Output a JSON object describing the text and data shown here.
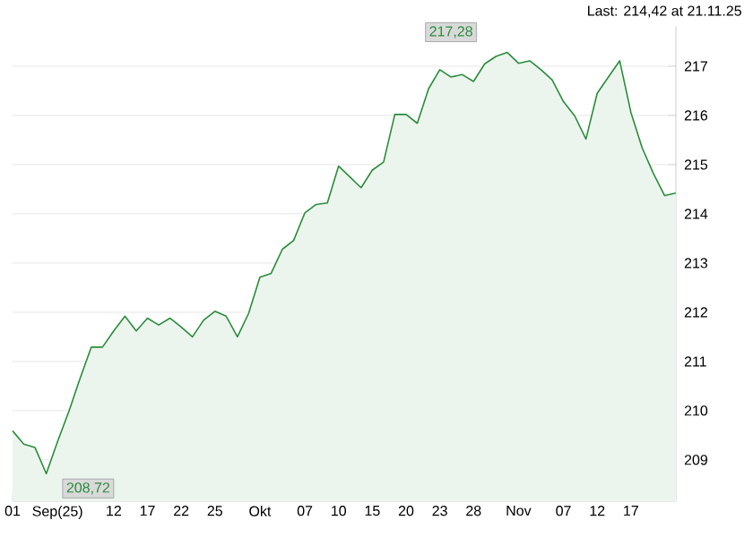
{
  "chart_data": {
    "type": "area",
    "color": "#2a8c3c",
    "categories": [
      "01",
      null,
      null,
      null,
      "Sep(25)",
      null,
      null,
      null,
      null,
      "12",
      null,
      null,
      "17",
      null,
      null,
      "22",
      null,
      null,
      "25",
      null,
      null,
      null,
      "Okt",
      null,
      null,
      null,
      "07",
      null,
      null,
      "10",
      null,
      null,
      "15",
      null,
      null,
      "20",
      null,
      null,
      "23",
      null,
      null,
      "28",
      null,
      null,
      null,
      "Nov",
      null,
      null,
      null,
      "07",
      null,
      null,
      "12",
      null,
      null,
      "17",
      null,
      null,
      null,
      null
    ],
    "values": [
      209.59,
      209.32,
      209.25,
      208.72,
      209.37,
      209.98,
      210.65,
      211.29,
      211.29,
      211.62,
      211.92,
      211.62,
      211.88,
      211.74,
      211.88,
      211.7,
      211.5,
      211.84,
      212.02,
      211.92,
      211.5,
      211.98,
      212.71,
      212.79,
      213.28,
      213.46,
      214.02,
      214.19,
      214.22,
      214.97,
      214.75,
      214.53,
      214.89,
      215.05,
      216.02,
      216.02,
      215.84,
      216.54,
      216.93,
      216.78,
      216.83,
      216.69,
      217.05,
      217.2,
      217.28,
      217.06,
      217.11,
      216.93,
      216.72,
      216.28,
      215.99,
      215.52,
      216.45,
      216.78,
      217.11,
      216.06,
      215.34,
      214.82,
      214.37,
      214.42
    ],
    "ylim": [
      208.16,
      217.8
    ],
    "yticks": [
      209,
      210,
      211,
      212,
      213,
      214,
      215,
      216,
      217
    ],
    "grid": "y",
    "annotations": [
      "Last: 214,42 at 21.11.25",
      "217,28",
      "208,72"
    ]
  }
}
